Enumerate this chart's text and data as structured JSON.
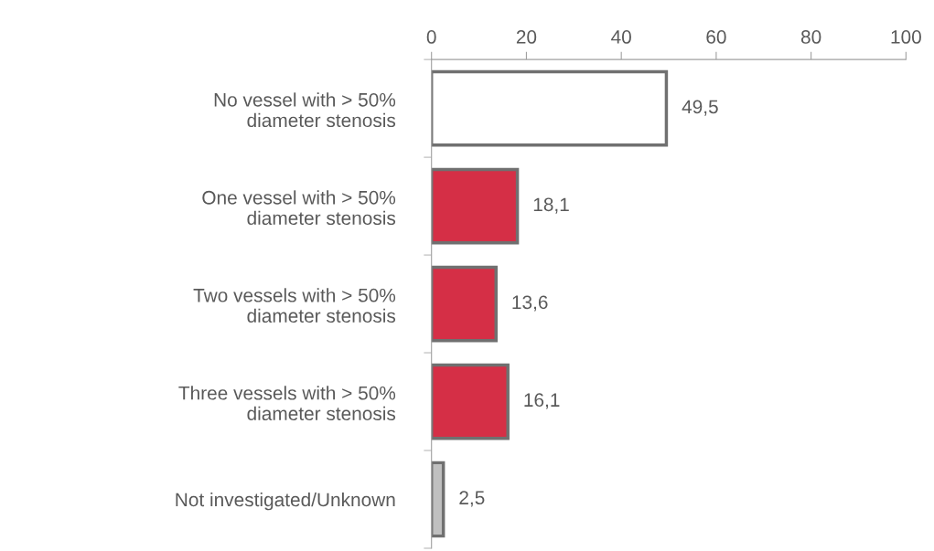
{
  "chart_data": {
    "type": "bar",
    "orientation": "horizontal",
    "categories": [
      "No vessel with > 50%\ndiameter stenosis",
      "One vessel with > 50%\ndiameter stenosis",
      "Two vessels with > 50%\ndiameter stenosis",
      "Three vessels with > 50%\ndiameter stenosis",
      "Not investigated/Unknown"
    ],
    "values": [
      49.5,
      18.1,
      13.6,
      16.1,
      2.5
    ],
    "colors": [
      "#ffffff",
      "#d52f46",
      "#d52f46",
      "#d52f46",
      "#c0c0c0"
    ],
    "value_labels": [
      "49,5",
      "18,1",
      "13,6",
      "16,1",
      "2,5"
    ],
    "xlim": [
      0,
      100
    ],
    "xticks": [
      0,
      20,
      40,
      60,
      80,
      100
    ],
    "grid": false,
    "legend": false
  }
}
